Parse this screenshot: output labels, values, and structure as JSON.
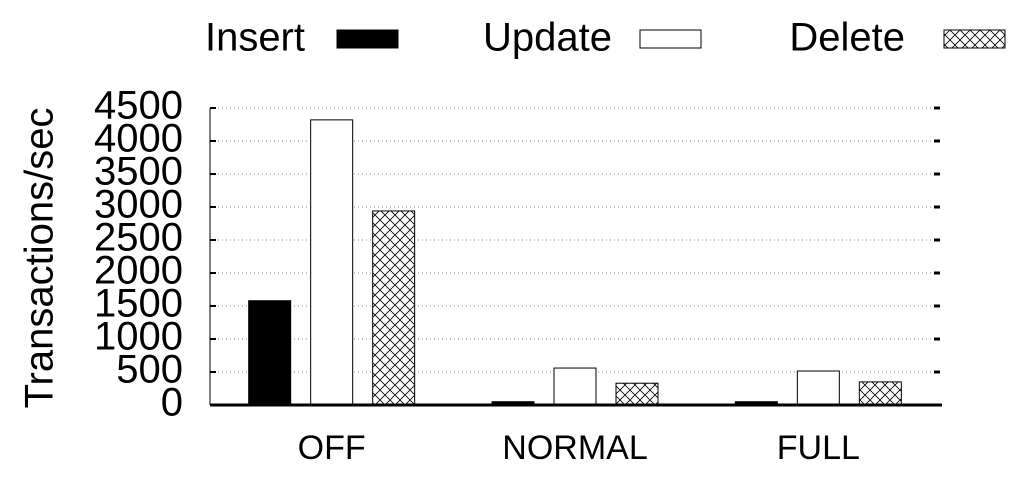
{
  "chart_data": {
    "type": "bar",
    "y_label": "Transactions/sec",
    "categories": [
      "OFF",
      "NORMAL",
      "FULL"
    ],
    "series": [
      {
        "name": "Insert",
        "color": "#000000",
        "values": [
          1580,
          50,
          50
        ]
      },
      {
        "name": "Update",
        "color": "#ffffff",
        "values": [
          4320,
          560,
          515
        ]
      },
      {
        "name": "Delete",
        "color": "#ffffff",
        "hatch": "cross",
        "values": [
          2940,
          330,
          350
        ]
      }
    ],
    "ylim": [
      0,
      4500
    ],
    "yticks": [
      0,
      500,
      1000,
      1500,
      2000,
      2500,
      3000,
      3500,
      4000,
      4500
    ],
    "grid": true,
    "legend": "top"
  }
}
